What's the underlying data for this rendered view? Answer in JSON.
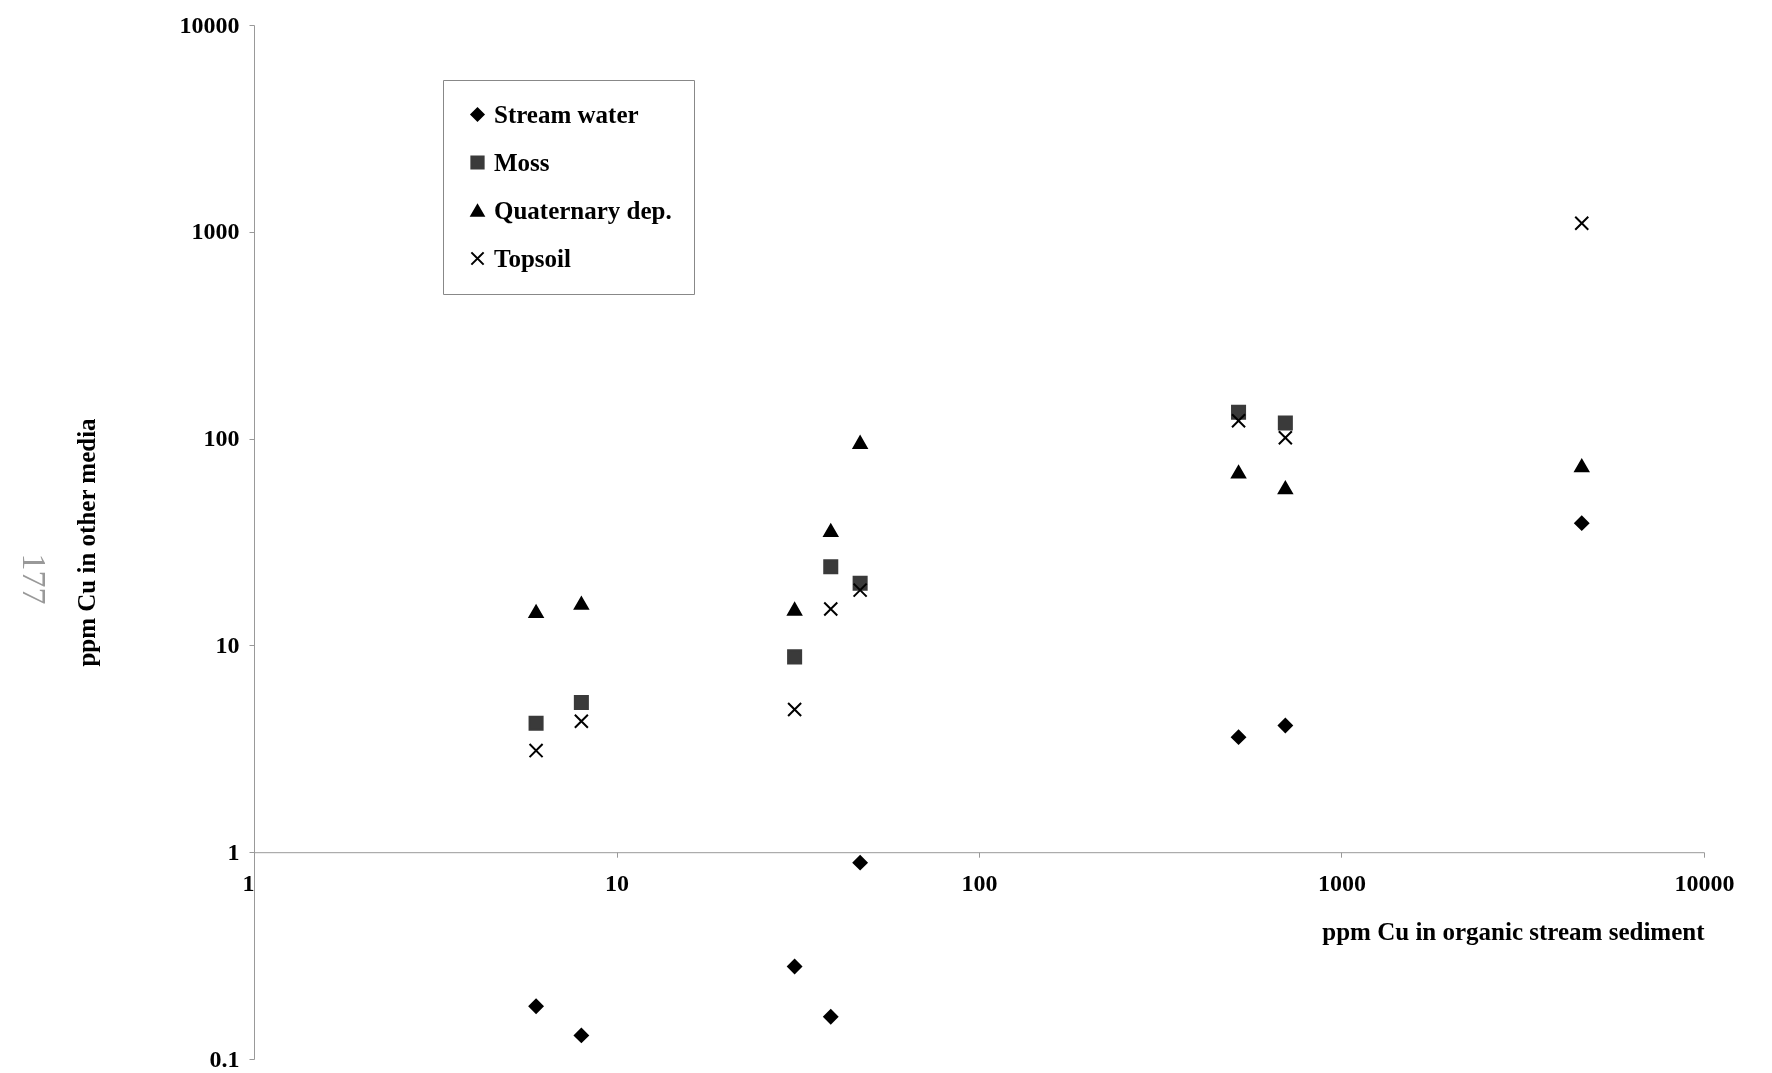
{
  "chart_data": {
    "type": "scatter",
    "xlabel": "ppm Cu in organic stream sediment",
    "ylabel": "ppm Cu in other media",
    "x": [
      6,
      8,
      31,
      39,
      47,
      520,
      700,
      4600
    ],
    "series": [
      {
        "name": "Stream water",
        "color": "#000000",
        "marker": "diamond",
        "values": [
          0.18,
          0.13,
          0.28,
          0.16,
          0.89,
          3.6,
          4.1,
          39
        ]
      },
      {
        "name": "Moss",
        "color": "#3a3a3a",
        "marker": "square",
        "values": [
          4.2,
          5.3,
          8.8,
          24,
          20,
          134,
          119,
          null
        ]
      },
      {
        "name": "Quaternary dep.",
        "color": "#000000",
        "marker": "triangle",
        "values": [
          14.6,
          16,
          15,
          36,
          96,
          69,
          58,
          74
        ]
      },
      {
        "name": "Topsoil",
        "color": "#000000",
        "marker": "cross",
        "values": [
          3.1,
          4.3,
          4.9,
          15,
          18.5,
          122,
          101,
          1100
        ]
      }
    ],
    "log": "xy",
    "xlim": [
      1,
      10000
    ],
    "ylim": [
      0.1,
      10000
    ],
    "xticks": [
      1,
      10,
      100,
      1000,
      10000
    ],
    "yticks": [
      0.1,
      1,
      10,
      100,
      1000,
      10000
    ],
    "grid": false,
    "legend": "top left",
    "annotations": [
      "177"
    ]
  }
}
